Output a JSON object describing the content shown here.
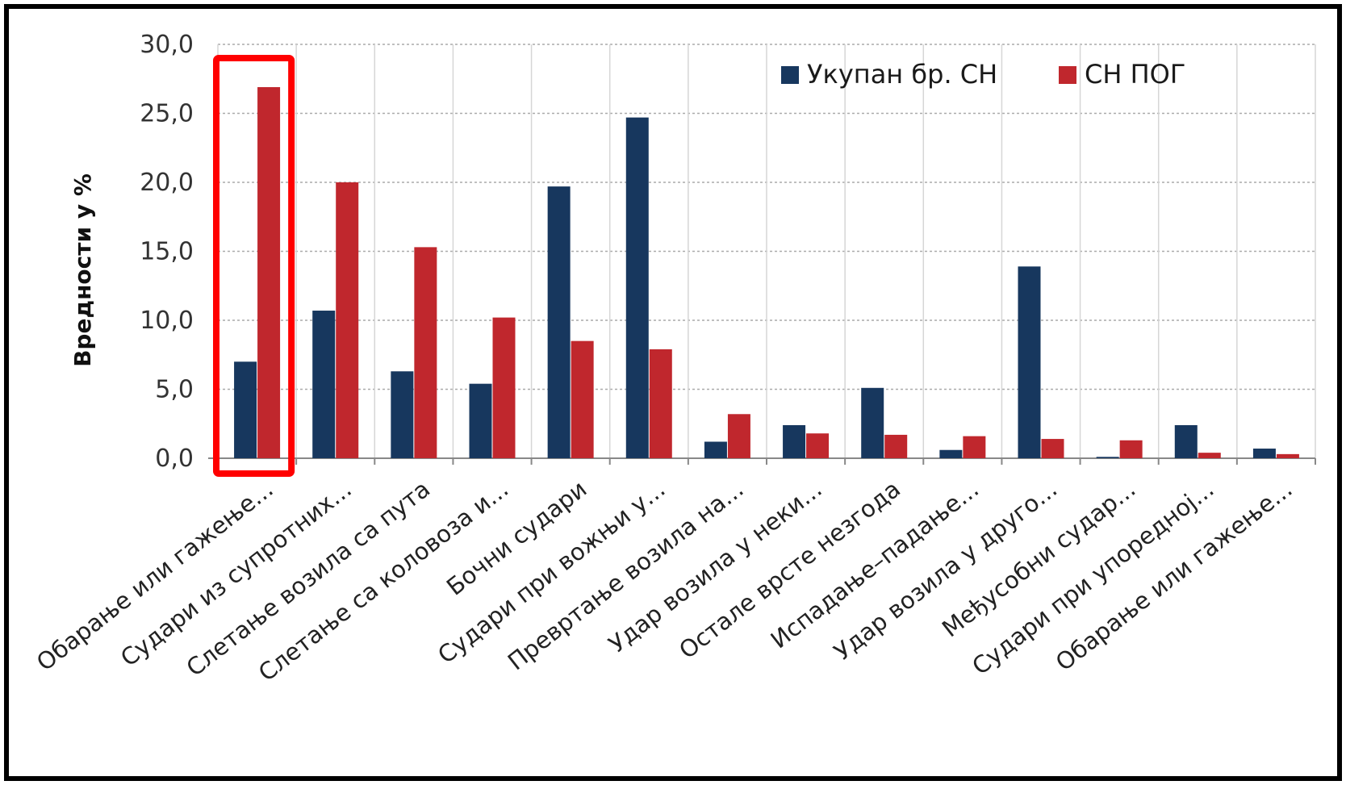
{
  "chart_data": {
    "type": "bar",
    "title": "",
    "xlabel": "",
    "ylabel": "Вредности у %",
    "ylim": [
      0,
      30
    ],
    "y_ticks": [
      "0,0",
      "5,0",
      "10,0",
      "15,0",
      "20,0",
      "25,0",
      "30,0"
    ],
    "grid": true,
    "legend_position": "top-right",
    "highlight_category_index": 0,
    "highlight_color": "#ff0000",
    "categories": [
      "Обарање или гажење...",
      "Судари из супротних...",
      "Слетање возила са пута",
      "Слетање са коловоза и...",
      "Бочни судари",
      "Судари при вожњи у...",
      "Превртање возила на...",
      "Удар возила у неки...",
      "Остале врсте незгода",
      "Испадање–падање...",
      "Удар возила у друго...",
      "Међусобни судар...",
      "Судари при упоредној...",
      "Обарање или гажење..."
    ],
    "series": [
      {
        "name": "Укупан бр. СН",
        "color": "#17375e",
        "values": [
          7.0,
          10.7,
          6.3,
          5.4,
          19.7,
          24.7,
          1.2,
          2.4,
          5.1,
          0.6,
          13.9,
          0.1,
          2.4,
          0.7
        ]
      },
      {
        "name": "СН ПОГ",
        "color": "#c0272d",
        "values": [
          26.9,
          20.0,
          15.3,
          10.2,
          8.5,
          7.9,
          3.2,
          1.8,
          1.7,
          1.6,
          1.4,
          1.3,
          0.4,
          0.3
        ]
      }
    ]
  }
}
